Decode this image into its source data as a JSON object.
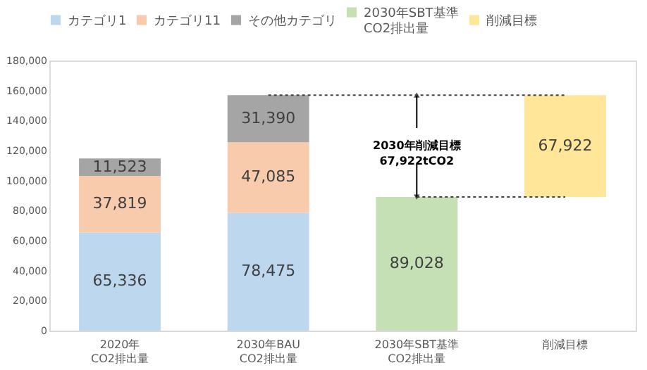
{
  "chart_data": {
    "type": "bar",
    "stacked": true,
    "categories": [
      "2020年\nCO2排出量",
      "2030年BAU\nCO2排出量",
      "2030年SBT基準\nCO2排出量",
      "削減目標"
    ],
    "series": [
      {
        "name": "カテゴリ1",
        "color": "#bdd7ee",
        "values": [
          65336,
          78475,
          null,
          null
        ],
        "value_labels": [
          "65,336",
          "78,475",
          null,
          null
        ]
      },
      {
        "name": "カテゴリ11",
        "color": "#f8cbad",
        "values": [
          37819,
          47085,
          null,
          null
        ],
        "value_labels": [
          "37,819",
          "47,085",
          null,
          null
        ]
      },
      {
        "name": "その他カテゴリ",
        "color": "#a5a5a5",
        "values": [
          11523,
          31390,
          null,
          null
        ],
        "value_labels": [
          "11,523",
          "31,390",
          null,
          null
        ]
      },
      {
        "name": "2030年SBT基準\nCO2排出量",
        "color": "#c5e0b4",
        "values": [
          null,
          null,
          89028,
          null
        ],
        "value_labels": [
          null,
          null,
          "89,028",
          null
        ]
      },
      {
        "name": "削減目標",
        "color": "#ffe699",
        "values": [
          null,
          null,
          null,
          67922
        ],
        "base": [
          null,
          null,
          null,
          89028
        ],
        "value_labels": [
          null,
          null,
          null,
          "67,922"
        ]
      }
    ],
    "ylim": [
      0,
      180000
    ],
    "yticks": [
      {
        "value": 0,
        "label": "0"
      },
      {
        "value": 20000,
        "label": "20,000"
      },
      {
        "value": 40000,
        "label": "40,000"
      },
      {
        "value": 60000,
        "label": "60,000"
      },
      {
        "value": 80000,
        "label": "80,000"
      },
      {
        "value": 100000,
        "label": "100,000"
      },
      {
        "value": 120000,
        "label": "120,000"
      },
      {
        "value": 140000,
        "label": "140,000"
      },
      {
        "value": 160000,
        "label": "160,000"
      },
      {
        "value": 180000,
        "label": "180,000"
      }
    ],
    "grid": false,
    "legend": "top",
    "ref_lines": [
      {
        "axis": "y",
        "value": 156950,
        "line_style": "dashed",
        "color": "#404040"
      },
      {
        "axis": "y",
        "value": 89028,
        "line_style": "dashed",
        "color": "#404040"
      }
    ],
    "annotations": [
      {
        "text": "2030年削減目標\n67,922tCO2",
        "x": "2030年SBT基準\nCO2排出量",
        "y": 89028
      }
    ]
  }
}
